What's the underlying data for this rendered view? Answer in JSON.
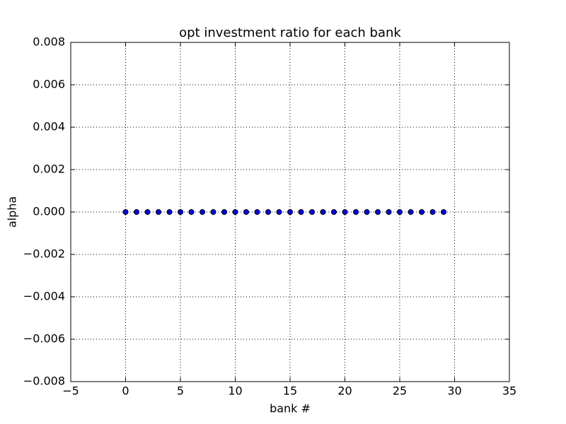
{
  "chart_data": {
    "type": "scatter",
    "title": "opt investment ratio for each bank",
    "xlabel": "bank #",
    "ylabel": "alpha",
    "x": [
      0,
      1,
      2,
      3,
      4,
      5,
      6,
      7,
      8,
      9,
      10,
      11,
      12,
      13,
      14,
      15,
      16,
      17,
      18,
      19,
      20,
      21,
      22,
      23,
      24,
      25,
      26,
      27,
      28,
      29
    ],
    "values": [
      0,
      0,
      0,
      0,
      0,
      0,
      0,
      0,
      0,
      0,
      0,
      0,
      0,
      0,
      0,
      0,
      0,
      0,
      0,
      0,
      0,
      0,
      0,
      0,
      0,
      0,
      0,
      0,
      0,
      0
    ],
    "color": "#0000ff",
    "xlim": [
      -5,
      35
    ],
    "xticks": [
      {
        "value": -5,
        "label": "−5"
      },
      0,
      5,
      10,
      15,
      20,
      25,
      30,
      35
    ],
    "ylim": [
      -0.008,
      0.008
    ],
    "yticks": [
      {
        "value": -0.008,
        "label": "−0.008"
      },
      {
        "value": -0.006,
        "label": "−0.006"
      },
      {
        "value": -0.004,
        "label": "−0.004"
      },
      {
        "value": -0.002,
        "label": "−0.002"
      },
      {
        "value": 0,
        "label": "0.000"
      },
      0.002,
      0.004,
      0.006,
      0.008
    ],
    "grid": true
  }
}
